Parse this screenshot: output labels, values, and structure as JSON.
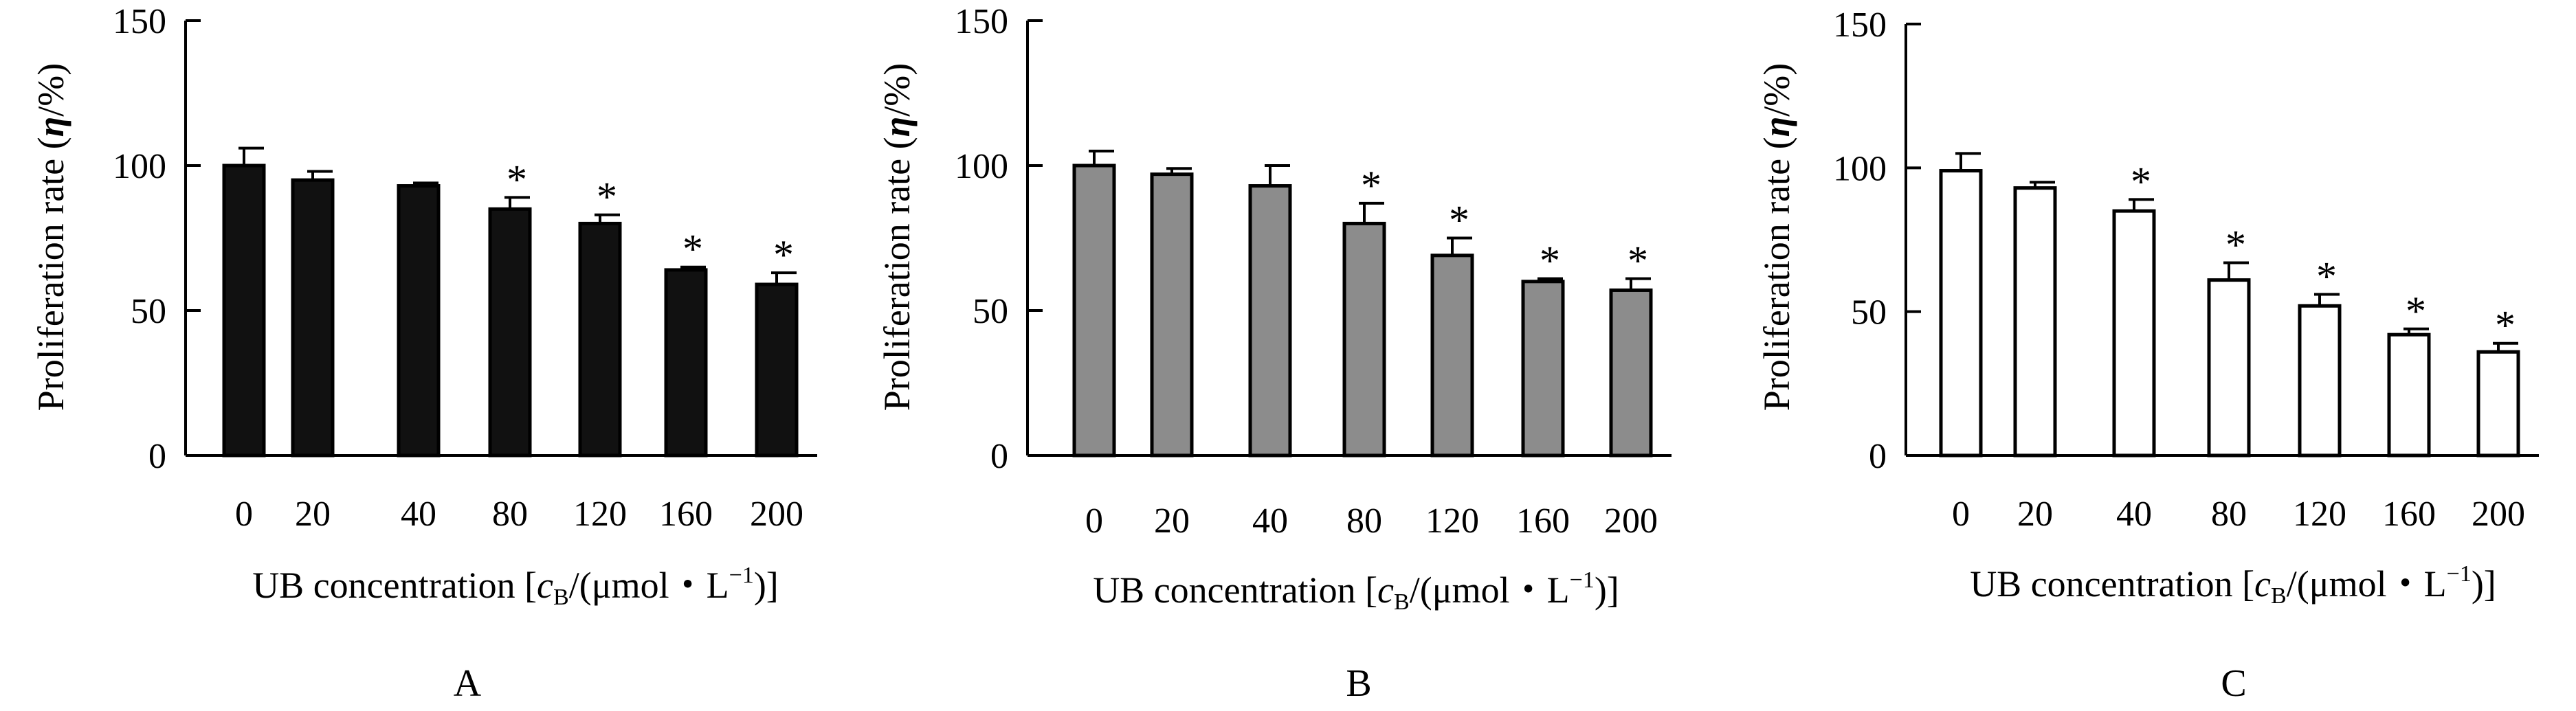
{
  "chart_data": [
    {
      "type": "bar",
      "panel": "A",
      "fill": "#111111",
      "categories": [
        "0",
        "20",
        "40",
        "80",
        "120",
        "160",
        "200"
      ],
      "values": [
        100,
        95,
        93,
        85,
        80,
        64,
        59
      ],
      "errors": [
        6,
        3,
        1,
        4,
        3,
        1,
        4
      ],
      "significant": [
        false,
        false,
        false,
        true,
        true,
        true,
        true
      ],
      "marker": "*",
      "yticks": [
        "0",
        "50",
        "100",
        "150"
      ],
      "ylim": [
        0,
        150
      ],
      "ylabel_pre": "Proliferation rate (",
      "ylabel_sym": "η",
      "ylabel_post": "/%)",
      "xlabel": {
        "pre": "UB concentration [",
        "c": "c",
        "sub": "B",
        "mid": "/(μmol・L",
        "sup": "−1",
        "post": ")]"
      }
    },
    {
      "type": "bar",
      "panel": "B",
      "fill": "#8c8c8c",
      "categories": [
        "0",
        "20",
        "40",
        "80",
        "120",
        "160",
        "200"
      ],
      "values": [
        100,
        97,
        93,
        80,
        69,
        60,
        57
      ],
      "errors": [
        5,
        2,
        7,
        7,
        6,
        1,
        4
      ],
      "significant": [
        false,
        false,
        false,
        true,
        true,
        true,
        true
      ],
      "marker": "*",
      "yticks": [
        "0",
        "50",
        "100",
        "150"
      ],
      "ylim": [
        0,
        150
      ],
      "ylabel_pre": "Proliferation rate (",
      "ylabel_sym": "η",
      "ylabel_post": "/%)",
      "xlabel": {
        "pre": "UB concentration [",
        "c": "c",
        "sub": "B",
        "mid": "/(μmol・L",
        "sup": "−1",
        "post": ")]"
      }
    },
    {
      "type": "bar",
      "panel": "C",
      "fill": "#ffffff",
      "categories": [
        "0",
        "20",
        "40",
        "80",
        "120",
        "160",
        "200"
      ],
      "values": [
        99,
        93,
        85,
        61,
        52,
        42,
        36
      ],
      "errors": [
        6,
        2,
        4,
        6,
        4,
        2,
        3
      ],
      "significant": [
        false,
        false,
        true,
        true,
        true,
        true,
        true
      ],
      "marker": "*",
      "yticks": [
        "0",
        "50",
        "100",
        "150"
      ],
      "ylim": [
        0,
        150
      ],
      "ylabel_pre": "Proliferation rate (",
      "ylabel_sym": "η",
      "ylabel_post": "/%)",
      "xlabel": {
        "pre": "UB concentration [",
        "c": "c",
        "sub": "B",
        "mid": "/(μmol・L",
        "sup": "−1",
        "post": ")]"
      }
    }
  ]
}
